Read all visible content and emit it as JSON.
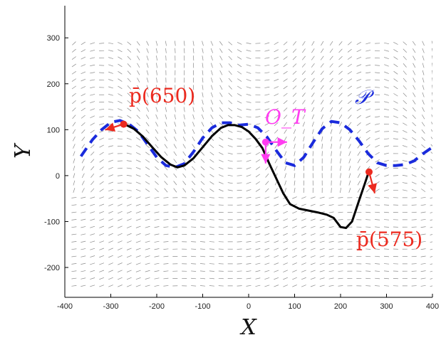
{
  "chart_data": {
    "type": "line",
    "xlabel": "X",
    "ylabel": "Y",
    "xlim": [
      -400,
      400
    ],
    "ylim": [
      -265,
      370
    ],
    "x_ticks": [
      "-400",
      "-300",
      "-200",
      "-100",
      "0",
      "100",
      "200",
      "300",
      "400"
    ],
    "y_ticks": [
      "-200",
      "-100",
      "0",
      "100",
      "200",
      "300"
    ],
    "grid": false,
    "quiver_field": true,
    "colors": {
      "trajectory": "#000000",
      "path": "#1a2bdc",
      "endpoints": "#ec2a1f",
      "obstacle": "#ff3df0",
      "field": "#8a8a8a"
    },
    "series": [
      {
        "name": "P",
        "label": "𝒫",
        "style": "dashed",
        "x": [
          -365,
          -340,
          -320,
          -300,
          -280,
          -260,
          -240,
          -220,
          -200,
          -180,
          -160,
          -140,
          -120,
          -100,
          -80,
          -60,
          -40,
          -20,
          0,
          20,
          40,
          60,
          80,
          100,
          120,
          140,
          160,
          180,
          200,
          220,
          240,
          260,
          280,
          300,
          320,
          340,
          360,
          380,
          400
        ],
        "y": [
          42,
          78,
          100,
          116,
          120,
          112,
          96,
          68,
          40,
          22,
          18,
          26,
          52,
          82,
          104,
          115,
          115,
          110,
          112,
          104,
          84,
          55,
          28,
          22,
          40,
          72,
          102,
          118,
          115,
          100,
          76,
          48,
          28,
          22,
          22,
          24,
          32,
          48,
          62
        ]
      },
      {
        "name": "trajectory",
        "style": "solid",
        "x": [
          -270,
          -250,
          -230,
          -210,
          -190,
          -170,
          -155,
          -140,
          -120,
          -100,
          -80,
          -60,
          -45,
          -30,
          -15,
          0,
          15,
          30,
          45,
          60,
          75,
          90,
          110,
          130,
          150,
          170,
          185,
          200,
          212,
          225,
          240,
          252,
          262
        ],
        "y": [
          112,
          102,
          85,
          62,
          40,
          24,
          18,
          22,
          38,
          62,
          86,
          104,
          110,
          110,
          106,
          96,
          80,
          60,
          26,
          -6,
          -38,
          -62,
          -72,
          -76,
          -80,
          -85,
          -92,
          -112,
          -114,
          -100,
          -55,
          -20,
          10
        ]
      }
    ],
    "points": [
      {
        "name": "p650",
        "x": -272,
        "y": 112
      },
      {
        "name": "p575",
        "x": 262,
        "y": 8
      },
      {
        "name": "O_T",
        "x": 37,
        "y": 73
      }
    ],
    "annotations": {
      "p650_label": "p̄(650)",
      "p575_label": "p̄(575)",
      "obstacle_label": "O_T",
      "path_label": "𝒫"
    }
  }
}
